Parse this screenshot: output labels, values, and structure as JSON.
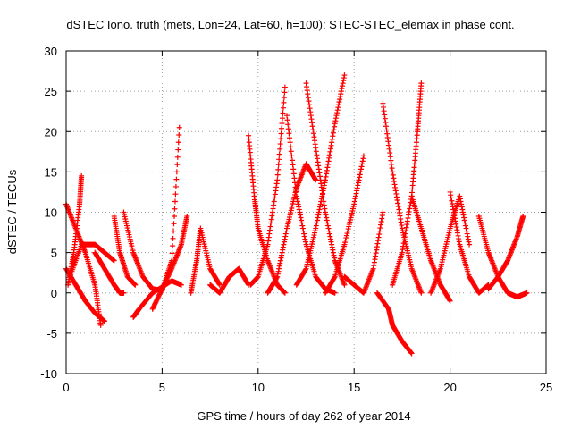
{
  "chart_data": {
    "type": "scatter",
    "title": "dSTEC Iono. truth (mets, Lon=24, Lat=60, h=100): STEC-STEC_elemax in phase cont.",
    "xlabel": "GPS time / hours of day 262 of year 2014",
    "ylabel": "dSTEC  / TECUs",
    "xlim": [
      0,
      25
    ],
    "ylim": [
      -10,
      30
    ],
    "xticks": [
      "0",
      "5",
      "10",
      "15",
      "20",
      "25"
    ],
    "yticks": [
      "-10",
      "-5",
      "0",
      "5",
      "10",
      "15",
      "20",
      "25",
      "30"
    ],
    "grid": true,
    "marker": "+",
    "color": "#ff0000",
    "series": [
      {
        "x": [
          0.0,
          0.5,
          1.0,
          1.5,
          1.8
        ],
        "y": [
          11,
          8,
          5,
          1,
          -4
        ]
      },
      {
        "x": [
          0.1,
          0.4,
          0.7,
          0.8
        ],
        "y": [
          1,
          5,
          11,
          14.5
        ]
      },
      {
        "x": [
          0.2,
          0.8,
          1.5,
          2.0,
          2.5
        ],
        "y": [
          2,
          6,
          6,
          5,
          4
        ]
      },
      {
        "x": [
          0.0,
          0.5,
          1.0,
          1.5,
          2.0
        ],
        "y": [
          3,
          1,
          -1,
          -2.5,
          -3.5
        ]
      },
      {
        "x": [
          1.5,
          2.0,
          2.5,
          2.8,
          3.0
        ],
        "y": [
          5,
          3,
          1,
          0,
          0
        ]
      },
      {
        "x": [
          2.5,
          2.8,
          3.2,
          3.6
        ],
        "y": [
          9.5,
          5,
          2,
          1
        ]
      },
      {
        "x": [
          3.5,
          3.8,
          4.5,
          5.5,
          6.0
        ],
        "y": [
          -3,
          -2,
          0,
          1.5,
          1
        ]
      },
      {
        "x": [
          3.0,
          3.5,
          4.0,
          4.5,
          5.0,
          5.5,
          5.9
        ],
        "y": [
          10,
          5,
          2,
          0.5,
          0.3,
          4,
          20.5
        ]
      },
      {
        "x": [
          4.5,
          5.0,
          5.5,
          6.0,
          6.3
        ],
        "y": [
          -2,
          0.5,
          3,
          6,
          9.5
        ]
      },
      {
        "x": [
          6.5,
          6.8,
          7.0,
          7.5,
          8.0
        ],
        "y": [
          0,
          4,
          8,
          3,
          1
        ]
      },
      {
        "x": [
          7.5,
          8.0,
          8.5,
          9.0,
          9.5
        ],
        "y": [
          1,
          0,
          2,
          3,
          1
        ]
      },
      {
        "x": [
          9.5,
          9.8,
          10.0,
          10.5,
          11.0,
          11.4
        ],
        "y": [
          19.5,
          12,
          8,
          4,
          1,
          0
        ]
      },
      {
        "x": [
          9.6,
          10.0,
          10.5,
          11.0,
          11.4
        ],
        "y": [
          1,
          2,
          6,
          14,
          25.5
        ]
      },
      {
        "x": [
          10.5,
          11.0,
          11.5,
          12.0,
          12.5,
          13.0
        ],
        "y": [
          0,
          2,
          8,
          13,
          16,
          14
        ]
      },
      {
        "x": [
          11.5,
          12.0,
          12.5,
          13.0,
          13.5,
          14.0
        ],
        "y": [
          22,
          12,
          6,
          2,
          0.5,
          0
        ]
      },
      {
        "x": [
          12.0,
          12.5,
          13.0,
          13.5,
          14.0,
          14.5
        ],
        "y": [
          1,
          3,
          8,
          14,
          21,
          27
        ]
      },
      {
        "x": [
          12.5,
          13.0,
          13.5,
          14.0,
          14.5
        ],
        "y": [
          26,
          18,
          10,
          4,
          1
        ]
      },
      {
        "x": [
          13.5,
          14.0,
          14.5,
          15.0,
          15.5
        ],
        "y": [
          0,
          2,
          6,
          11,
          17
        ]
      },
      {
        "x": [
          14.5,
          15.0,
          15.5,
          16.0,
          16.5
        ],
        "y": [
          2,
          1,
          0,
          3,
          10
        ]
      },
      {
        "x": [
          16.2,
          16.8,
          17.0,
          17.5,
          18.0
        ],
        "y": [
          0,
          -2,
          -4,
          -6,
          -7.5
        ]
      },
      {
        "x": [
          16.5,
          17.0,
          17.5,
          18.0,
          18.5
        ],
        "y": [
          23.5,
          15,
          8,
          3,
          0
        ]
      },
      {
        "x": [
          17.0,
          17.5,
          18.0,
          18.3,
          18.5
        ],
        "y": [
          1,
          5,
          12,
          20,
          26
        ]
      },
      {
        "x": [
          18.0,
          18.5,
          19.0,
          19.5,
          20.0
        ],
        "y": [
          12,
          8,
          4,
          1,
          -1
        ]
      },
      {
        "x": [
          19.0,
          19.5,
          20.0,
          20.5,
          21.0
        ],
        "y": [
          0,
          3,
          8,
          12,
          6
        ]
      },
      {
        "x": [
          20.0,
          20.5,
          21.0,
          21.5,
          22.0
        ],
        "y": [
          12.5,
          6,
          2,
          0,
          1
        ]
      },
      {
        "x": [
          21.5,
          22.0,
          22.5,
          23.0,
          23.5,
          24.0
        ],
        "y": [
          9.5,
          5,
          2,
          0,
          -0.5,
          0
        ]
      },
      {
        "x": [
          22.0,
          22.5,
          23.0,
          23.5,
          23.8
        ],
        "y": [
          0.5,
          2,
          4,
          7,
          9.5
        ]
      }
    ]
  }
}
